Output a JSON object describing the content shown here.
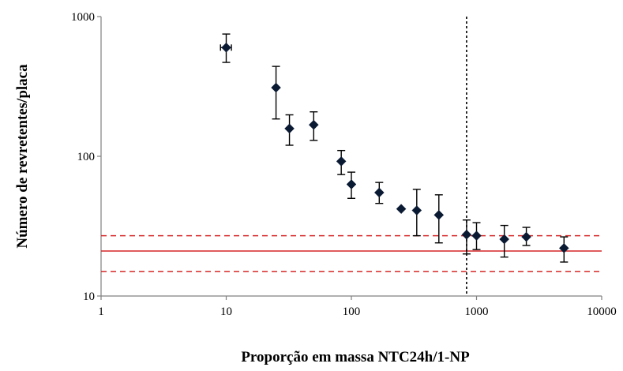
{
  "chart_data": {
    "type": "scatter",
    "xlabel": "Proporção  em massa NTC24h/1-NP",
    "ylabel": "Número  de revretentes/placa",
    "x_scale": "log",
    "y_scale": "log",
    "xlim": [
      1,
      10000
    ],
    "ylim": [
      10,
      1000
    ],
    "x_ticks": [
      1,
      10,
      100,
      1000,
      10000
    ],
    "x_tick_labels": [
      "1",
      "10",
      "100",
      "1000",
      "10000"
    ],
    "y_ticks": [
      10,
      100,
      1000
    ],
    "y_tick_labels": [
      "10",
      "100",
      "1000"
    ],
    "grid": false,
    "legend": "none",
    "series": [
      {
        "marker": "diamond",
        "color": "#0b1a33",
        "points": [
          {
            "x": 10,
            "y": 600,
            "y_err_low": 130,
            "y_err_high": 150,
            "x_err": 1
          },
          {
            "x": 25,
            "y": 310,
            "y_err_low": 125,
            "y_err_high": 130
          },
          {
            "x": 32,
            "y": 158,
            "y_err_low": 38,
            "y_err_high": 40
          },
          {
            "x": 50,
            "y": 168,
            "y_err_low": 38,
            "y_err_high": 40
          },
          {
            "x": 83,
            "y": 92,
            "y_err_low": 18,
            "y_err_high": 18
          },
          {
            "x": 100,
            "y": 63,
            "y_err_low": 13,
            "y_err_high": 14
          },
          {
            "x": 167,
            "y": 55,
            "y_err_low": 9,
            "y_err_high": 10
          },
          {
            "x": 250,
            "y": 42,
            "y_err_low": 0,
            "y_err_high": 0
          },
          {
            "x": 333,
            "y": 41,
            "y_err_low": 14,
            "y_err_high": 17
          },
          {
            "x": 500,
            "y": 38,
            "y_err_low": 14,
            "y_err_high": 15
          },
          {
            "x": 833,
            "y": 27.5,
            "y_err_low": 7.5,
            "y_err_high": 7.5
          },
          {
            "x": 1000,
            "y": 27,
            "y_err_low": 5.5,
            "y_err_high": 6.5
          },
          {
            "x": 1667,
            "y": 25.5,
            "y_err_low": 6.5,
            "y_err_high": 6.5
          },
          {
            "x": 2500,
            "y": 26.5,
            "y_err_low": 3.5,
            "y_err_high": 4.5
          },
          {
            "x": 5000,
            "y": 22,
            "y_err_low": 4.5,
            "y_err_high": 4.5
          }
        ]
      }
    ],
    "reference_lines": [
      {
        "orientation": "horizontal",
        "y": 21,
        "color": "#d62728",
        "style": "solid"
      },
      {
        "orientation": "horizontal",
        "y": 27,
        "color": "#d62728",
        "style": "dashed"
      },
      {
        "orientation": "horizontal",
        "y": 15,
        "color": "#d62728",
        "style": "dashed"
      },
      {
        "orientation": "vertical",
        "x": 833,
        "color": "#000000",
        "style": "dotted"
      }
    ]
  }
}
